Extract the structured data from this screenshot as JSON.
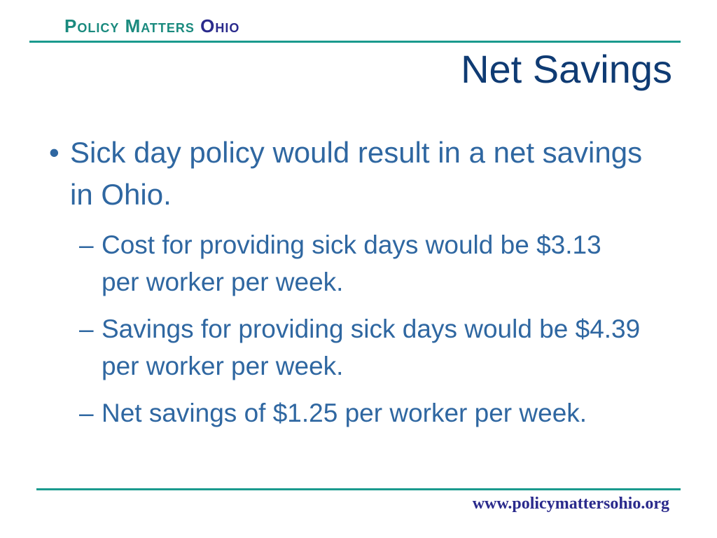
{
  "header": {
    "brand": "Policy Matters",
    "brand_accent": "Ohio"
  },
  "title": "Net Savings",
  "bullets": [
    {
      "text": "Sick day policy would result in a net savings in Ohio.",
      "sub": [
        "Cost for providing sick days would be $3.13 per worker per week.",
        "Savings for providing sick days would be $4.39 per worker per week.",
        "Net savings of $1.25 per worker per week."
      ]
    }
  ],
  "footer": {
    "url": "www.policymattersohio.org"
  }
}
